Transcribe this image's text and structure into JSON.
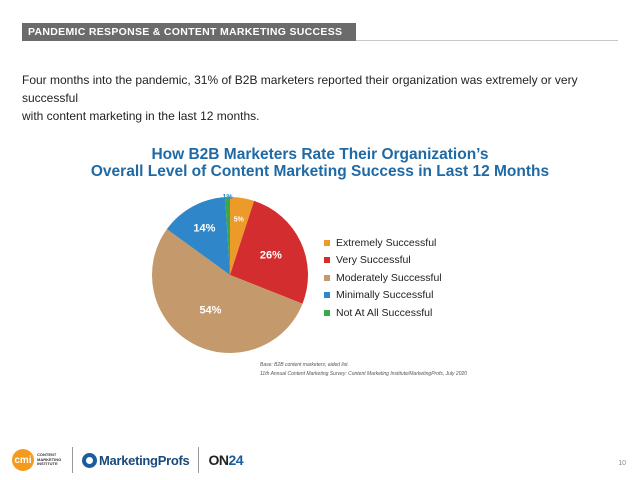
{
  "header": {
    "section_label": "PANDEMIC RESPONSE & CONTENT MARKETING SUCCESS"
  },
  "intro": {
    "line1": "Four months into the pandemic, 31% of B2B marketers reported their organization was extremely or very successful",
    "line2": "with content marketing in the last 12 months."
  },
  "chart_data": {
    "type": "pie",
    "title": [
      "How B2B Marketers Rate Their Organization’s",
      "Overall Level of Content Marketing Success in Last 12 Months"
    ],
    "slices": [
      {
        "label": "Extremely Successful",
        "value": 5,
        "display": "5%",
        "color": "#ec9a2a"
      },
      {
        "label": "Very Successful",
        "value": 26,
        "display": "26%",
        "color": "#d42d2f"
      },
      {
        "label": "Moderately Successful",
        "value": 54,
        "display": "54%",
        "color": "#c49a6c"
      },
      {
        "label": "Minimally Successful",
        "value": 14,
        "display": "14%",
        "color": "#2f86c9"
      },
      {
        "label": "Not At All Successful",
        "value": 1,
        "display": "1%",
        "color": "#3aa84a"
      }
    ],
    "legend_position": "right"
  },
  "source": {
    "line1": "Base: B2B content marketers; aided list.",
    "line2": "11th Annual Content Marketing Survey: Content Marketing Institute/MarketingProfs, July 2020"
  },
  "footer": {
    "cmi_badge": "cmi",
    "cmi_text": "CONTENT\nMARKETING\nINSTITUTE",
    "mp_text": "MarketingProfs",
    "on24_prefix": "ON",
    "on24_suffix": "24",
    "page_number": "10"
  }
}
